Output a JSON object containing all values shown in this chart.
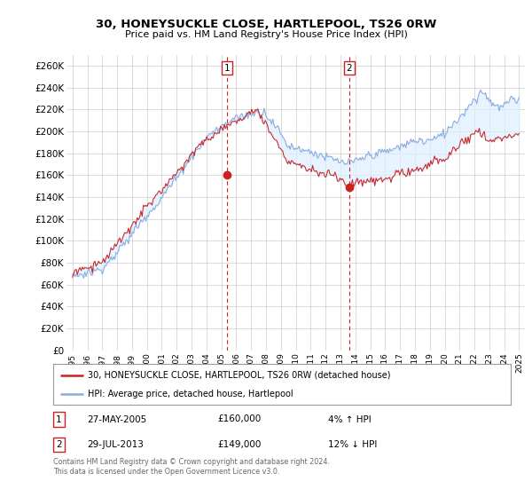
{
  "title": "30, HONEYSUCKLE CLOSE, HARTLEPOOL, TS26 0RW",
  "subtitle": "Price paid vs. HM Land Registry's House Price Index (HPI)",
  "legend_line1": "30, HONEYSUCKLE CLOSE, HARTLEPOOL, TS26 0RW (detached house)",
  "legend_line2": "HPI: Average price, detached house, Hartlepool",
  "table_rows": [
    {
      "num": "1",
      "date": "27-MAY-2005",
      "price": "£160,000",
      "change": "4% ↑ HPI"
    },
    {
      "num": "2",
      "date": "29-JUL-2013",
      "price": "£149,000",
      "change": "12% ↓ HPI"
    }
  ],
  "footnote": "Contains HM Land Registry data © Crown copyright and database right 2024.\nThis data is licensed under the Open Government Licence v3.0.",
  "ylim": [
    0,
    270000
  ],
  "yticks": [
    0,
    20000,
    40000,
    60000,
    80000,
    100000,
    120000,
    140000,
    160000,
    180000,
    200000,
    220000,
    240000,
    260000
  ],
  "ytick_labels": [
    "£0",
    "£20K",
    "£40K",
    "£60K",
    "£80K",
    "£100K",
    "£120K",
    "£140K",
    "£160K",
    "£180K",
    "£200K",
    "£220K",
    "£240K",
    "£260K"
  ],
  "sale1_year": 2005.38,
  "sale1_price": 160000,
  "sale2_year": 2013.58,
  "sale2_price": 149000,
  "color_sold": "#cc2222",
  "color_hpi": "#88aadd",
  "color_fill": "#ddeeff",
  "color_grid": "#cccccc",
  "color_marker_box": "#cc2222",
  "background_color": "#ffffff"
}
